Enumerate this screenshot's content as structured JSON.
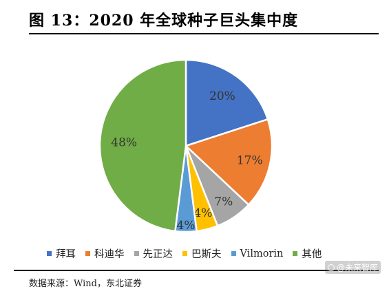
{
  "figure": {
    "title": "图 13：2020 年全球种子巨头集中度",
    "source": "数据来源：Wind，东北证券"
  },
  "watermark": {
    "text": "@未来智库",
    "icon": "logo-icon"
  },
  "chart_data": {
    "type": "pie",
    "title": "图 13：2020 年全球种子巨头集中度",
    "start_angle_deg": 0,
    "direction": "clockwise",
    "legend_position": "bottom",
    "slices": [
      {
        "name": "拜耳",
        "value": 20,
        "label": "20%",
        "color": "#4472C4"
      },
      {
        "name": "科迪华",
        "value": 17,
        "label": "17%",
        "color": "#ED7D31"
      },
      {
        "name": "先正达",
        "value": 7,
        "label": "7%",
        "color": "#A5A5A5"
      },
      {
        "name": "巴斯夫",
        "value": 4,
        "label": "4%",
        "color": "#FFC000"
      },
      {
        "name": "Vilmorin",
        "value": 4,
        "label": "4%",
        "color": "#5B9BD5"
      },
      {
        "name": "其他",
        "value": 48,
        "label": "48%",
        "color": "#70AD47"
      }
    ]
  }
}
